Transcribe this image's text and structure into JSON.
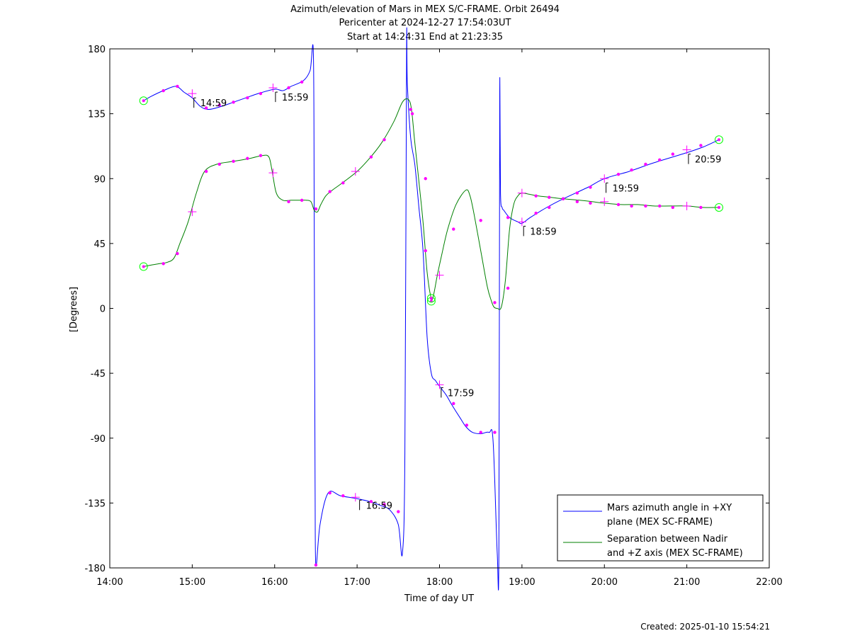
{
  "chart_data": {
    "type": "line",
    "title": [
      "Azimuth/elevation of Mars in MEX S/C-FRAME.  Orbit 26494",
      "Pericenter at 2024-12-27 17:54:03UT",
      "Start at 14:24:31 End at 21:23:35"
    ],
    "xlabel": "Time of day UT",
    "ylabel": "[Degrees]",
    "xlim": [
      14.0,
      22.0
    ],
    "ylim": [
      -180,
      180
    ],
    "x_ticks": [
      14,
      15,
      16,
      17,
      18,
      19,
      20,
      21,
      22
    ],
    "x_tick_labels": [
      "14:00",
      "15:00",
      "16:00",
      "17:00",
      "18:00",
      "19:00",
      "20:00",
      "21:00",
      "22:00"
    ],
    "y_ticks": [
      180,
      135,
      90,
      45,
      0,
      -45,
      -90,
      -135,
      -180
    ],
    "y_tick_labels": [
      "180",
      "135",
      "90",
      "45",
      "0",
      "-45",
      "-90",
      "-135",
      "-180"
    ],
    "legend_position": "bottom-right",
    "series": [
      {
        "name": "Mars azimuth angle in +XY plane (MEX SC-FRAME)",
        "legend_lines": [
          "Mars azimuth angle in +XY",
          "plane (MEX SC-FRAME)"
        ],
        "color": "#0000ff",
        "x": [
          14.41,
          14.5,
          14.65,
          14.8,
          14.9,
          15.0,
          15.1,
          15.2,
          15.35,
          15.5,
          15.65,
          15.8,
          16.0,
          16.1,
          16.2,
          16.35,
          16.43,
          16.47,
          16.48,
          16.49,
          16.5,
          16.55,
          16.65,
          16.8,
          17.0,
          17.15,
          17.3,
          17.4,
          17.5,
          17.55,
          17.58,
          17.6,
          17.61,
          17.65,
          17.7,
          17.75,
          17.8,
          17.85,
          17.9,
          17.95,
          18.0,
          18.08,
          18.15,
          18.25,
          18.32,
          18.4,
          18.5,
          18.6,
          18.65,
          18.7,
          18.72,
          18.73,
          18.74,
          18.76,
          18.78,
          18.85,
          18.95,
          19.0,
          19.1,
          19.3,
          19.5,
          19.8,
          20.0,
          20.3,
          20.6,
          21.0,
          21.2,
          21.39
        ],
        "y": [
          144,
          147,
          151,
          154,
          150,
          146,
          140,
          138,
          140,
          143,
          146,
          149,
          152,
          151,
          154,
          158,
          165,
          177,
          60,
          -120,
          -178,
          -150,
          -128,
          -130,
          -132,
          -134,
          -137,
          -140,
          -150,
          -170,
          -100,
          179,
          155,
          118,
          100,
          70,
          40,
          -20,
          -45,
          -50,
          -54,
          -60,
          -67,
          -76,
          -82,
          -86,
          -87,
          -86,
          -92,
          -170,
          -168,
          150,
          80,
          70,
          68,
          63,
          60,
          59,
          63,
          70,
          76,
          84,
          90,
          95,
          101,
          108,
          112,
          117
        ]
      },
      {
        "name": "Separation between Nadir and +Z axis (MEX SC-FRAME)",
        "legend_lines": [
          "Separation between Nadir",
          "and +Z axis (MEX SC-FRAME)"
        ],
        "color": "#008000",
        "x": [
          14.41,
          14.5,
          14.6,
          14.7,
          14.78,
          14.85,
          14.95,
          15.05,
          15.15,
          15.3,
          15.5,
          15.7,
          15.85,
          15.93,
          15.97,
          16.02,
          16.1,
          16.2,
          16.3,
          16.38,
          16.44,
          16.48,
          16.52,
          16.56,
          16.62,
          16.7,
          16.82,
          17.0,
          17.15,
          17.3,
          17.45,
          17.55,
          17.62,
          17.66,
          17.7,
          17.75,
          17.8,
          17.85,
          17.9,
          17.93,
          17.97,
          18.03,
          18.1,
          18.2,
          18.32,
          18.37,
          18.42,
          18.5,
          18.58,
          18.63,
          18.66,
          18.7,
          18.75,
          18.8,
          18.85,
          18.9,
          18.95,
          19.0,
          19.1,
          19.2,
          19.35,
          19.5,
          19.7,
          19.85,
          20.0,
          20.2,
          20.4,
          20.6,
          20.8,
          21.0,
          21.2,
          21.39
        ],
        "y": [
          29,
          30,
          31,
          32,
          35,
          45,
          60,
          80,
          95,
          100,
          102,
          104,
          106,
          105,
          95,
          80,
          75,
          75,
          75,
          75,
          74,
          68,
          67,
          72,
          78,
          82,
          87,
          95,
          104,
          115,
          130,
          143,
          145,
          138,
          115,
          88,
          60,
          25,
          7,
          10,
          22,
          38,
          55,
          72,
          82,
          78,
          65,
          40,
          15,
          5,
          1,
          0,
          1,
          20,
          55,
          72,
          78,
          80,
          79,
          78,
          77,
          76,
          75,
          74,
          73,
          72,
          72,
          71,
          71,
          71,
          70,
          70
        ]
      }
    ],
    "markers": {
      "dot_color": "#ff00ff",
      "endpoint_circle_color": "#00ff00",
      "endpoint_circles": [
        {
          "x": 14.41,
          "y": 144
        },
        {
          "x": 14.41,
          "y": 29
        },
        {
          "x": 17.9,
          "y": 5
        },
        {
          "x": 17.9,
          "y": 7
        },
        {
          "x": 21.39,
          "y": 117
        },
        {
          "x": 21.39,
          "y": 70
        }
      ],
      "dots": [
        {
          "x": 14.65,
          "y": 151
        },
        {
          "x": 14.82,
          "y": 154
        },
        {
          "x": 15.17,
          "y": 139
        },
        {
          "x": 15.33,
          "y": 141
        },
        {
          "x": 15.5,
          "y": 143
        },
        {
          "x": 15.67,
          "y": 146
        },
        {
          "x": 15.83,
          "y": 149
        },
        {
          "x": 16.17,
          "y": 153
        },
        {
          "x": 16.33,
          "y": 157
        },
        {
          "x": 16.5,
          "y": -178
        },
        {
          "x": 16.67,
          "y": -128
        },
        {
          "x": 16.83,
          "y": -130
        },
        {
          "x": 17.17,
          "y": -134
        },
        {
          "x": 17.33,
          "y": -136
        },
        {
          "x": 17.5,
          "y": -141
        },
        {
          "x": 17.67,
          "y": 135
        },
        {
          "x": 17.83,
          "y": 90
        },
        {
          "x": 18.17,
          "y": -66
        },
        {
          "x": 18.33,
          "y": -81
        },
        {
          "x": 18.5,
          "y": -86
        },
        {
          "x": 18.67,
          "y": -86
        },
        {
          "x": 18.83,
          "y": 63
        },
        {
          "x": 19.17,
          "y": 66
        },
        {
          "x": 19.33,
          "y": 70
        },
        {
          "x": 19.5,
          "y": 76
        },
        {
          "x": 19.67,
          "y": 80
        },
        {
          "x": 19.83,
          "y": 84
        },
        {
          "x": 20.17,
          "y": 93
        },
        {
          "x": 20.33,
          "y": 96
        },
        {
          "x": 20.5,
          "y": 100
        },
        {
          "x": 20.67,
          "y": 103
        },
        {
          "x": 20.83,
          "y": 107
        },
        {
          "x": 21.17,
          "y": 113
        },
        {
          "x": 14.65,
          "y": 31
        },
        {
          "x": 14.82,
          "y": 38
        },
        {
          "x": 15.17,
          "y": 95
        },
        {
          "x": 15.33,
          "y": 100
        },
        {
          "x": 15.5,
          "y": 102
        },
        {
          "x": 15.67,
          "y": 104
        },
        {
          "x": 15.83,
          "y": 106
        },
        {
          "x": 16.17,
          "y": 74
        },
        {
          "x": 16.33,
          "y": 75
        },
        {
          "x": 16.5,
          "y": 69
        },
        {
          "x": 16.67,
          "y": 81
        },
        {
          "x": 16.83,
          "y": 87
        },
        {
          "x": 17.17,
          "y": 105
        },
        {
          "x": 17.33,
          "y": 117
        },
        {
          "x": 17.65,
          "y": 138
        },
        {
          "x": 17.83,
          "y": 40
        },
        {
          "x": 18.17,
          "y": 55
        },
        {
          "x": 18.5,
          "y": 61
        },
        {
          "x": 18.67,
          "y": 4
        },
        {
          "x": 18.83,
          "y": 14
        },
        {
          "x": 19.17,
          "y": 78
        },
        {
          "x": 19.33,
          "y": 77
        },
        {
          "x": 19.5,
          "y": 76
        },
        {
          "x": 19.67,
          "y": 74
        },
        {
          "x": 19.83,
          "y": 73
        },
        {
          "x": 20.17,
          "y": 72
        },
        {
          "x": 20.33,
          "y": 71
        },
        {
          "x": 20.5,
          "y": 71
        },
        {
          "x": 20.67,
          "y": 71
        },
        {
          "x": 20.83,
          "y": 70
        },
        {
          "x": 21.17,
          "y": 70
        }
      ],
      "crosses": [
        {
          "x": 15.0,
          "y": 149
        },
        {
          "x": 15.98,
          "y": 153
        },
        {
          "x": 16.98,
          "y": -131
        },
        {
          "x": 18.0,
          "y": -53
        },
        {
          "x": 19.0,
          "y": 60
        },
        {
          "x": 20.0,
          "y": 90
        },
        {
          "x": 21.0,
          "y": 110
        },
        {
          "x": 15.0,
          "y": 67
        },
        {
          "x": 15.98,
          "y": 94
        },
        {
          "x": 16.98,
          "y": 95
        },
        {
          "x": 18.0,
          "y": 23
        },
        {
          "x": 19.0,
          "y": 80
        },
        {
          "x": 20.0,
          "y": 74
        },
        {
          "x": 21.0,
          "y": 71
        }
      ]
    },
    "hour_annotations": [
      {
        "label": "14:59",
        "x": 15.02,
        "y": 146
      },
      {
        "label": "15:59",
        "x": 16.01,
        "y": 150
      },
      {
        "label": "16:59",
        "x": 17.03,
        "y": -133
      },
      {
        "label": "17:59",
        "x": 18.02,
        "y": -55
      },
      {
        "label": "18:59",
        "x": 19.02,
        "y": 57
      },
      {
        "label": "19:59",
        "x": 20.02,
        "y": 87
      },
      {
        "label": "20:59",
        "x": 21.02,
        "y": 107
      }
    ]
  },
  "footer": {
    "created": "Created: 2025-01-10 15:54:21"
  }
}
